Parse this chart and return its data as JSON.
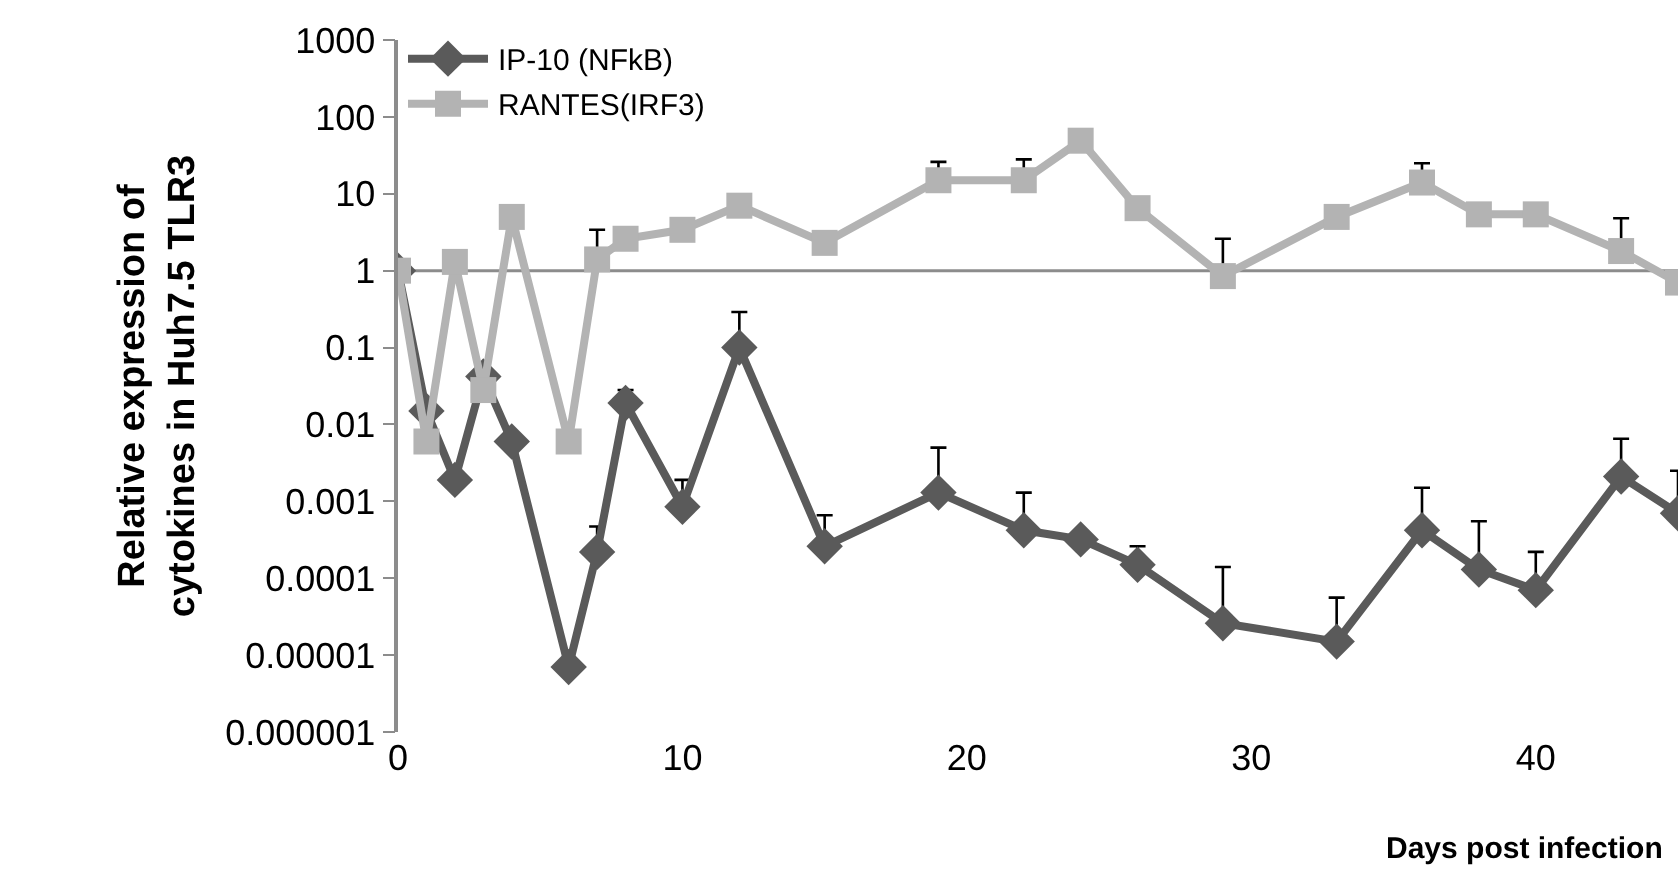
{
  "chart_data": {
    "type": "line",
    "xlabel": "Days post infection",
    "ylabel": "Relative expression of\ncytokines in Huh7.5 TLR3",
    "x": [
      0,
      1,
      2,
      3,
      4,
      6,
      7,
      8,
      10,
      12,
      15,
      19,
      22,
      24,
      26,
      29,
      33,
      36,
      38,
      40,
      43,
      45
    ],
    "series": [
      {
        "name": "IP-10 (NFkB)",
        "color": "#5a5a5a",
        "marker": "diamond",
        "values": [
          1,
          0.015,
          0.0019,
          0.042,
          0.006,
          7e-06,
          0.00022,
          0.019,
          0.00085,
          0.1,
          0.00026,
          0.0013,
          0.00042,
          0.00032,
          0.00015,
          2.6e-05,
          1.5e-05,
          0.00042,
          0.00013,
          7e-05,
          0.0021,
          0.0007
        ],
        "errors": [
          null,
          null,
          null,
          null,
          null,
          null,
          [
            0.00022,
            0.00047
          ],
          [
            0.019,
            0.028
          ],
          [
            0.00085,
            0.0019
          ],
          [
            0.1,
            0.29
          ],
          [
            0.00026,
            0.00066
          ],
          [
            0.0013,
            0.005
          ],
          [
            0.00042,
            0.0013
          ],
          null,
          [
            0.00015,
            0.00026
          ],
          [
            2.6e-05,
            0.00014
          ],
          [
            1.5e-05,
            5.6e-05
          ],
          [
            0.00042,
            0.0015
          ],
          [
            0.00013,
            0.00055
          ],
          [
            7e-05,
            0.00022
          ],
          [
            0.0021,
            0.0065
          ],
          [
            0.0007,
            0.0025
          ]
        ]
      },
      {
        "name": "RANTES(IRF3)",
        "color": "#b3b3b3",
        "marker": "square",
        "values": [
          1,
          0.006,
          1.3,
          0.028,
          5,
          0.006,
          1.4,
          2.6,
          3.4,
          7,
          2.3,
          15,
          15,
          49,
          6.5,
          0.85,
          5,
          14,
          5.4,
          5.4,
          1.8,
          0.7
        ],
        "errors": [
          null,
          null,
          null,
          null,
          null,
          null,
          [
            1.4,
            3.4
          ],
          null,
          null,
          null,
          null,
          [
            15,
            26
          ],
          [
            15,
            28
          ],
          null,
          null,
          [
            0.85,
            2.6
          ],
          null,
          [
            14,
            25
          ],
          null,
          null,
          [
            1.8,
            4.8
          ],
          null
        ]
      }
    ],
    "log": "y",
    "xlim": [
      0,
      45
    ],
    "xticks": [
      0,
      10,
      20,
      30,
      40
    ],
    "ylim": [
      1e-06,
      1000
    ],
    "yticks": [
      {
        "value": 1e-06,
        "label": "0.000001"
      },
      {
        "value": 1e-05,
        "label": "0.00001"
      },
      0.0001,
      0.001,
      0.01,
      0.1,
      1,
      10,
      100,
      1000
    ],
    "ref_lines": [
      {
        "axis": "y",
        "value": 1,
        "color": "#8c8c8c"
      }
    ],
    "grid": false,
    "legend": "top left"
  }
}
